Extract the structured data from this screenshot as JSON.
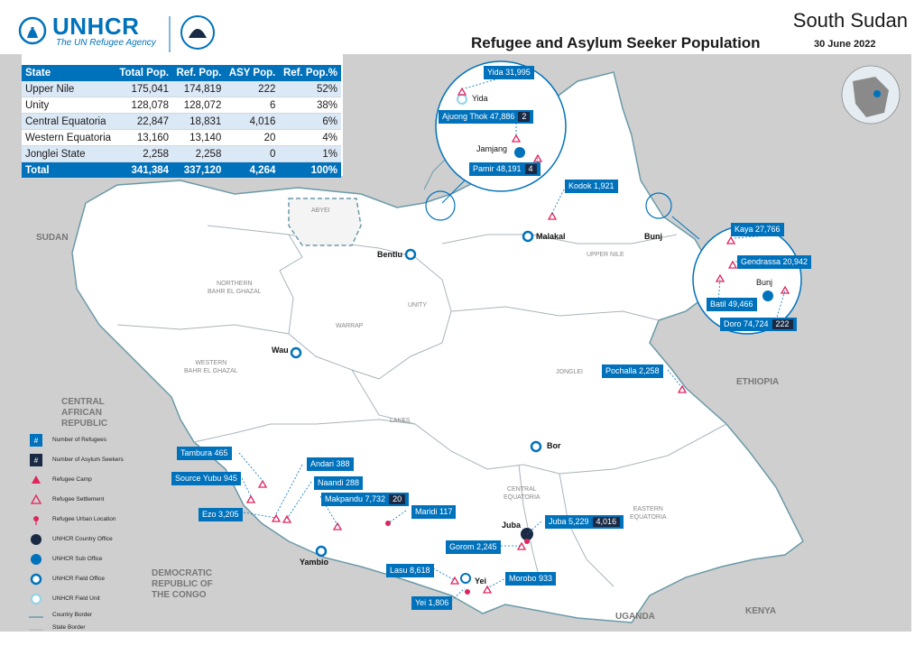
{
  "header": {
    "org": "UNHCR",
    "tagline": "The UN Refugee Agency",
    "country": "South Sudan",
    "title": "Refugee and Asylum Seeker Population",
    "date": "30 June 2022"
  },
  "table": {
    "columns": [
      "State",
      "Total Pop.",
      "Ref. Pop.",
      "ASY Pop.",
      "Ref. Pop.%"
    ],
    "rows": [
      [
        "Upper Nile",
        "175,041",
        "174,819",
        "222",
        "52%"
      ],
      [
        "Unity",
        "128,078",
        "128,072",
        "6",
        "38%"
      ],
      [
        "Central Equatoria",
        "22,847",
        "18,831",
        "4,016",
        "6%"
      ],
      [
        "Western Equatoria",
        "13,160",
        "13,140",
        "20",
        "4%"
      ],
      [
        "Jonglei State",
        "2,258",
        "2,258",
        "0",
        "1%"
      ]
    ],
    "total": [
      "Total",
      "341,384",
      "337,120",
      "4,264",
      "100%"
    ]
  },
  "sites": {
    "yida": "Yida 31,995",
    "ajuong": "Ajuong Thok 47,886",
    "ajuong_asy": "2",
    "pamir": "Pamir 48,191",
    "pamir_asy": "4",
    "kodok": "Kodok 1,921",
    "kaya": "Kaya 27,766",
    "gendrassa": "Gendrassa 20,942",
    "batil": "Batil 49,466",
    "doro": "Doro 74,724",
    "doro_asy": "222",
    "pochalla": "Pochalla 2,258",
    "tambura": "Tambura 465",
    "source_yubu": "Source Yubu 945",
    "ezo": "Ezo 3,205",
    "andari": "Andari 388",
    "naandi": "Naandi 288",
    "makpandu": "Makpandu 7,732",
    "makpandu_asy": "20",
    "maridi": "Maridi 117",
    "juba": "Juba 5,229",
    "juba_asy": "4,016",
    "gorom": "Gorom 2,245",
    "lasu": "Lasu 8,618",
    "morobo": "Morobo 933",
    "yei": "Yei 1,806"
  },
  "places": {
    "yida": "Yida",
    "jamjang": "Jamjang",
    "malakal": "Malakal",
    "bunj": "Bunj",
    "bunj_inset": "Bunj",
    "bentiu": "Bentiu",
    "wau": "Wau",
    "bor": "Bor",
    "juba": "Juba",
    "yambio": "Yambio",
    "yei": "Yei"
  },
  "regions": {
    "abyei": "ABYEI",
    "nbg": "NORTHERN\nBAHR EL GHAZAL",
    "warrap": "WARRAP",
    "unity": "UNITY",
    "upper_nile": "UPPER NILE",
    "wbg": "WESTERN\nBAHR EL GHAZAL",
    "jonglei": "JONGLEI",
    "lakes": "LAKES",
    "ce": "CENTRAL\nEQUATORIA",
    "ee": "EASTERN\nEQUATORIA"
  },
  "neighbors": {
    "sudan": "SUDAN",
    "car": "CENTRAL\nAFRICAN\nREPUBLIC",
    "ethiopia": "ETHIOPIA",
    "drc": "DEMOCRATIC\nREPUBLIC OF\nTHE CONGO",
    "uganda": "UGANDA",
    "kenya": "KENYA"
  },
  "legend": [
    {
      "icon": "refugee-count-box",
      "label": "Number of Refugees"
    },
    {
      "icon": "asylum-count-box",
      "label": "Number of Asylum Seekers"
    },
    {
      "icon": "refugee-camp-icon",
      "label": "Refugee Camp"
    },
    {
      "icon": "refugee-settlement-icon",
      "label": "Refugee Settlement"
    },
    {
      "icon": "urban-location-icon",
      "label": "Refugee Urban Location"
    },
    {
      "icon": "country-office-icon",
      "label": "UNHCR Country Office"
    },
    {
      "icon": "sub-office-icon",
      "label": "UNHCR Sub Office"
    },
    {
      "icon": "field-office-icon",
      "label": "UNHCR Field Office"
    },
    {
      "icon": "field-unit-icon",
      "label": "UNHCR Field Unit"
    },
    {
      "icon": "country-border-line",
      "label": "Country Border"
    },
    {
      "icon": "state-border-line",
      "label": "State Border"
    }
  ],
  "colors": {
    "unhcr_blue": "#0072bc",
    "asylum_navy": "#1a2a44",
    "land": "#ffffff",
    "neighbor_land": "#cfcfcf",
    "camp_red": "#e0245e"
  }
}
